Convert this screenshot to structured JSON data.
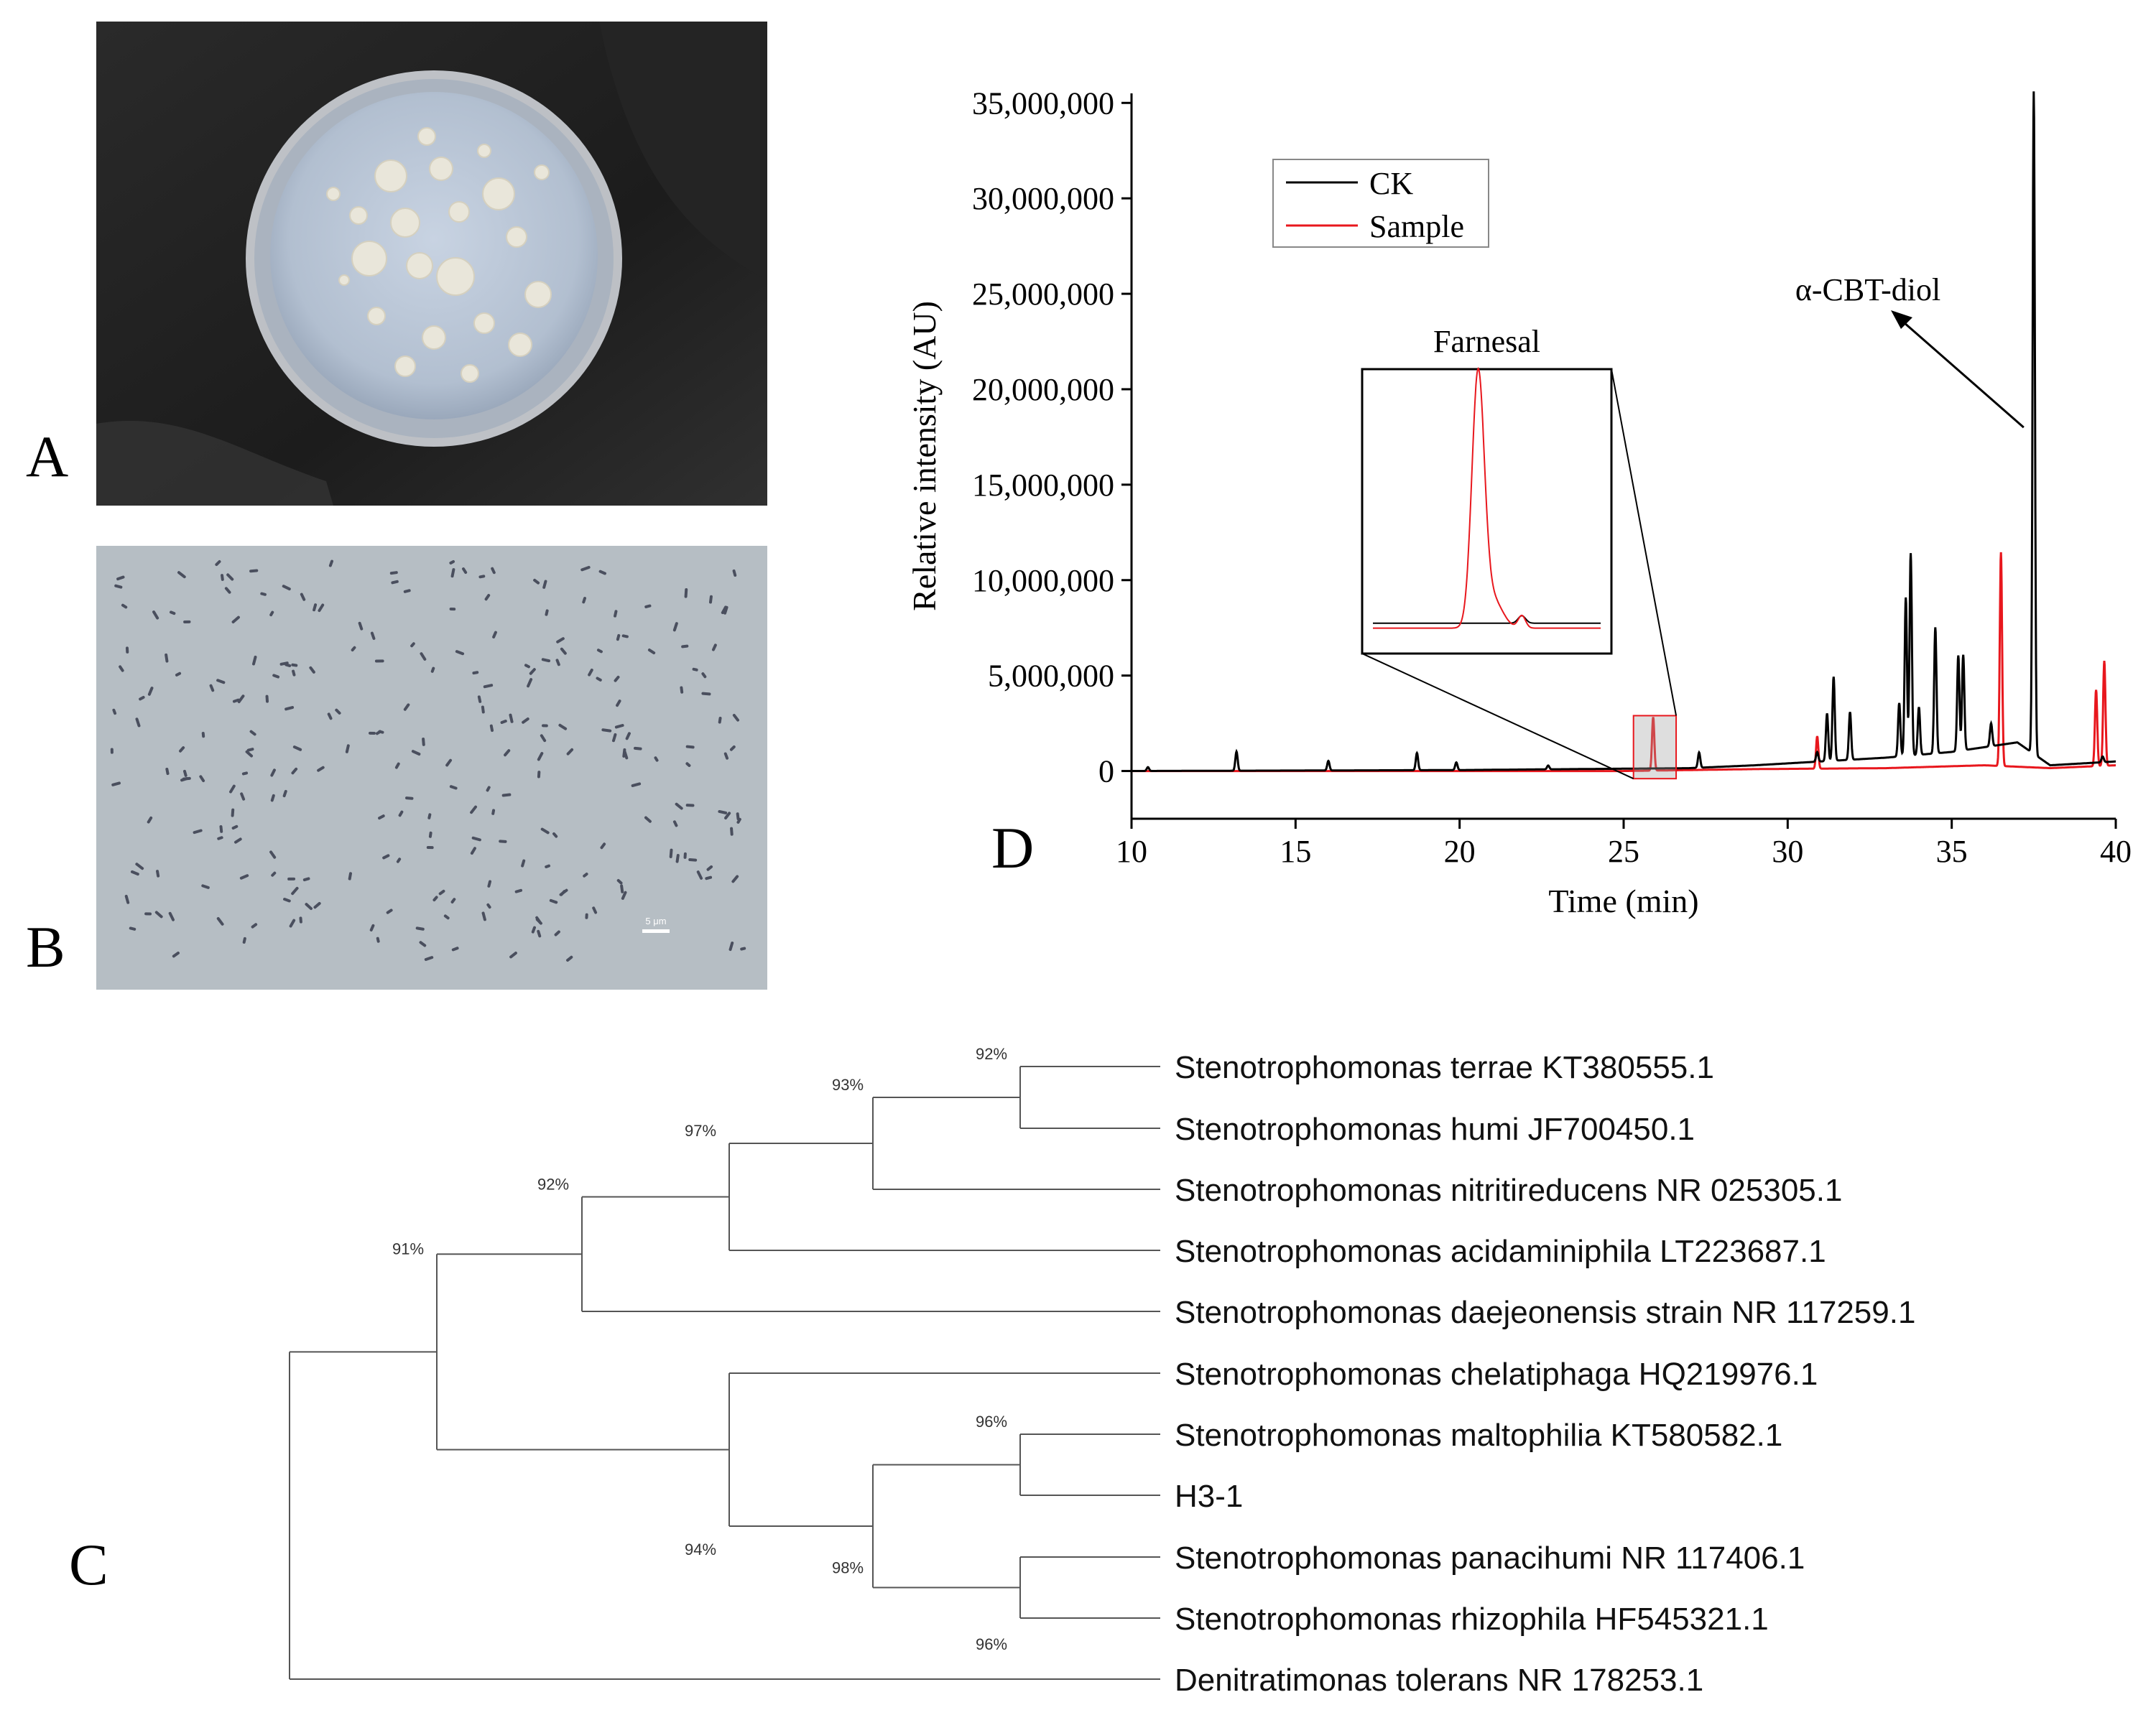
{
  "panels": {
    "a": "A",
    "b": "B",
    "c": "C",
    "d": "D"
  },
  "micrograph": {
    "scale_bar_label": "5 μm"
  },
  "chart_data": {
    "type": "line",
    "xlabel": "Time (min)",
    "ylabel": "Relative intensity (AU)",
    "xlim": [
      10,
      40
    ],
    "ylim": [
      -2500000,
      35500000
    ],
    "xticks": [
      10,
      15,
      20,
      25,
      30,
      35,
      40
    ],
    "yticks": [
      0,
      5000000,
      10000000,
      15000000,
      20000000,
      25000000,
      30000000,
      35000000
    ],
    "ytick_labels": [
      "0",
      "5,000,000",
      "10,000,000",
      "15,000,000",
      "20,000,000",
      "25,000,000",
      "30,000,000",
      "35,000,000"
    ],
    "legend": {
      "position": "top-left"
    },
    "series": [
      {
        "name": "CK",
        "color": "#000000",
        "baseline": [
          [
            10,
            0
          ],
          [
            20,
            50000
          ],
          [
            27,
            150000
          ],
          [
            29,
            300000
          ],
          [
            31,
            500000
          ],
          [
            33,
            700000
          ],
          [
            35,
            1000000
          ],
          [
            37,
            1500000
          ],
          [
            38,
            300000
          ],
          [
            40,
            500000
          ]
        ],
        "peaks": [
          [
            10.5,
            200000
          ],
          [
            13.2,
            1000000
          ],
          [
            16.0,
            500000
          ],
          [
            18.7,
            900000
          ],
          [
            19.9,
            400000
          ],
          [
            22.7,
            200000
          ],
          [
            27.3,
            800000
          ],
          [
            30.9,
            500000
          ],
          [
            31.2,
            2500000
          ],
          [
            31.4,
            4400000
          ],
          [
            31.9,
            2500000
          ],
          [
            33.4,
            2800000
          ],
          [
            33.6,
            8300000
          ],
          [
            33.75,
            10600000
          ],
          [
            34.0,
            2500000
          ],
          [
            34.5,
            6600000
          ],
          [
            35.2,
            5000000
          ],
          [
            35.35,
            5000000
          ],
          [
            36.2,
            1200000
          ],
          [
            37.5,
            34700000
          ],
          [
            39.6,
            300000
          ]
        ]
      },
      {
        "name": "Sample",
        "color": "#e8171d",
        "baseline": [
          [
            10,
            0
          ],
          [
            25,
            0
          ],
          [
            29,
            100000
          ],
          [
            33,
            150000
          ],
          [
            36,
            300000
          ],
          [
            38,
            150000
          ],
          [
            40,
            300000
          ]
        ],
        "peaks": [
          [
            25.9,
            2800000
          ],
          [
            30.9,
            1700000
          ],
          [
            36.5,
            11200000
          ],
          [
            39.4,
            4000000
          ],
          [
            39.65,
            5500000
          ]
        ]
      }
    ],
    "annotations": [
      {
        "label": "Farnesal",
        "x": 25.9
      },
      {
        "label": "α-CBT-diol",
        "x": 37.5
      }
    ],
    "inset": {
      "xlim": [
        25.3,
        26.6
      ],
      "ck_level": 0.05,
      "sample_peak": 1.0
    }
  },
  "tree": {
    "taxa": [
      "Stenotrophomonas terrae KT380555.1",
      "Stenotrophomonas humi JF700450.1",
      "Stenotrophomonas nitritireducens NR 025305.1",
      "Stenotrophomonas acidaminiphila LT223687.1",
      "Stenotrophomonas daejeonensis strain NR 117259.1",
      "Stenotrophomonas chelatiphaga HQ219976.1",
      "Stenotrophomonas maltophilia KT580582.1",
      "H3-1",
      "Stenotrophomonas panacihumi NR 117406.1",
      "Stenotrophomonas rhizophila HF545321.1",
      "Denitratimonas tolerans NR 178253.1"
    ],
    "bootstraps": [
      "92%",
      "93%",
      "97%",
      "92%",
      "91%",
      "94%",
      "96%",
      "98%",
      "96%"
    ]
  },
  "colors": {
    "ck": "#000000",
    "sample": "#e8171d",
    "tree_line": "#555555"
  }
}
